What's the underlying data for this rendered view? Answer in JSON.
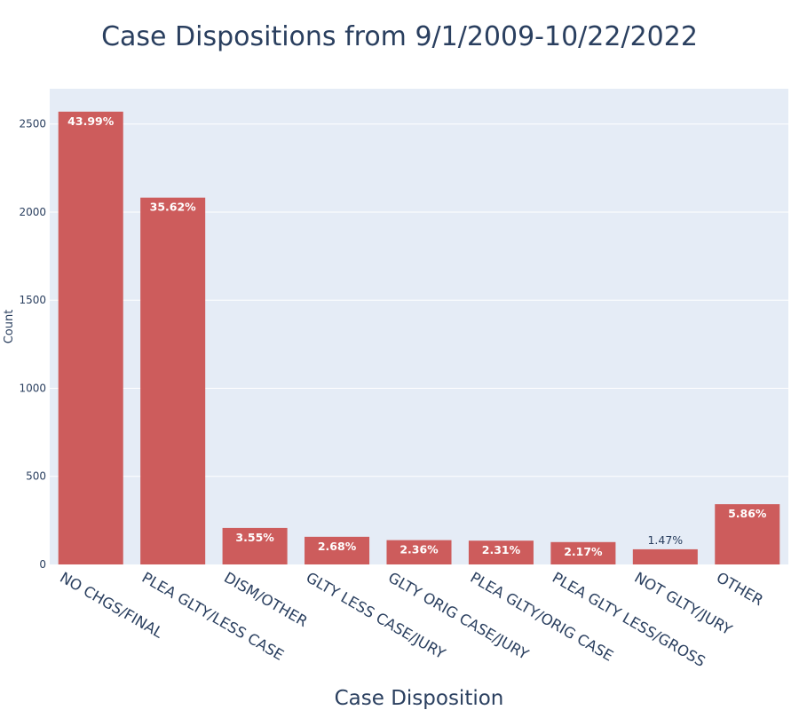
{
  "chart_data": {
    "type": "bar",
    "title": "Case Dispositions from 9/1/2009-10/22/2022",
    "xlabel": "Case Disposition",
    "ylabel": "Count",
    "ylim": [
      0,
      2700
    ],
    "yticks": [
      0,
      500,
      1000,
      1500,
      2000,
      2500
    ],
    "grid": true,
    "categories": [
      "NO CHGS/FINAL",
      "PLEA GLTY/LESS CASE",
      "DISM/OTHER",
      "GLTY LESS CASE/JURY",
      "GLTY ORIG CASE/JURY",
      "PLEA GLTY/ORIG CASE",
      "PLEA GLTY LESS/GROSS",
      "NOT GLTY/JURY",
      "OTHER"
    ],
    "values": [
      2570,
      2082,
      207,
      157,
      138,
      135,
      127,
      86,
      342
    ],
    "labels": [
      "43.99%",
      "35.62%",
      "3.55%",
      "2.68%",
      "2.36%",
      "2.31%",
      "2.17%",
      "1.47%",
      "5.86%"
    ],
    "label_position": [
      "inside",
      "inside",
      "inside",
      "inside",
      "inside",
      "inside",
      "inside",
      "outside",
      "inside"
    ],
    "bar_color": "#cd5c5c",
    "plot_bg": "#e5ecf6",
    "grid_color": "#ffffff",
    "text_color": "#2a3f5f"
  }
}
